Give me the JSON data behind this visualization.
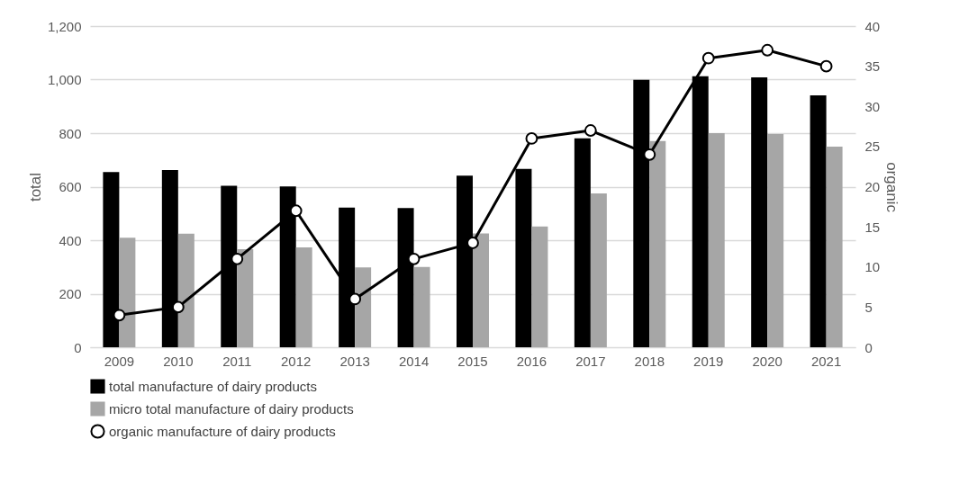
{
  "chart_data": {
    "type": "bar",
    "xlabel": null,
    "ylabel": "total",
    "y2label": "organic",
    "categories": [
      "2009",
      "2010",
      "2011",
      "2012",
      "2013",
      "2014",
      "2015",
      "2016",
      "2017",
      "2018",
      "2019",
      "2020",
      "2021"
    ],
    "series": [
      {
        "name": "total manufacture of dairy products",
        "color": "#000000",
        "values": [
          655,
          662,
          603,
          601,
          522,
          520,
          641,
          666,
          781,
          999,
          1013,
          1008,
          941
        ]
      },
      {
        "name": "micro total manufacture of dairy products",
        "color": "#a6a6a6",
        "values": [
          409,
          424,
          366,
          373,
          298,
          300,
          425,
          451,
          575,
          771,
          800,
          797,
          750
        ]
      },
      {
        "name": "organic manufacture of dairy products",
        "type": "line",
        "axis": "y2",
        "color": "#000000",
        "marker": "circle",
        "values": [
          4,
          5,
          11,
          17,
          6,
          11,
          13,
          26,
          27,
          24,
          36,
          37,
          35
        ]
      }
    ],
    "ylim": [
      0,
      1200
    ],
    "yticks": [
      0,
      {
        "value": 200,
        "label": "200"
      },
      {
        "value": 400,
        "label": "400"
      },
      {
        "value": 600,
        "label": "600"
      },
      {
        "value": 800,
        "label": "800"
      },
      {
        "value": 1000,
        "label": "1,000"
      },
      {
        "value": 1200,
        "label": "1,200"
      }
    ],
    "y2lim": [
      0,
      40
    ],
    "y2ticks": [
      0,
      5,
      10,
      15,
      20,
      25,
      30,
      35,
      40
    ],
    "grid": "y",
    "legend": "bottom"
  }
}
